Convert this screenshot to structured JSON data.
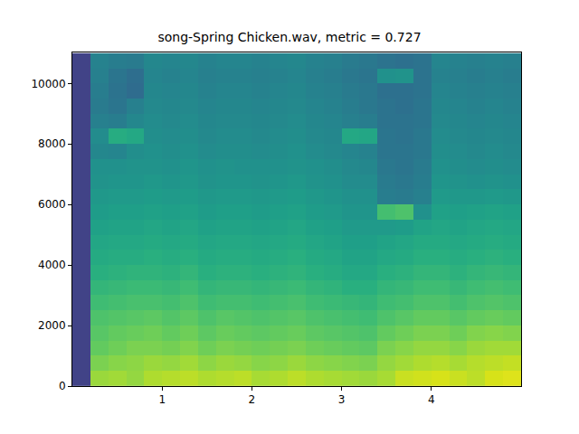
{
  "chart_data": {
    "type": "heatmap",
    "title": "song-Spring Chicken.wav, metric = 0.727",
    "x": [
      0.1,
      0.3,
      0.5,
      0.7,
      0.9,
      1.1,
      1.3,
      1.5,
      1.7,
      1.9,
      2.1,
      2.3,
      2.5,
      2.7,
      2.9,
      3.1,
      3.3,
      3.5,
      3.7,
      3.9,
      4.1,
      4.3,
      4.5,
      4.7,
      4.9
    ],
    "y": [
      250,
      750,
      1250,
      1750,
      2250,
      2750,
      3250,
      3750,
      4250,
      4750,
      5250,
      5750,
      6250,
      6750,
      7250,
      7750,
      8250,
      8750,
      9250,
      9750,
      10250,
      10750
    ],
    "z": [
      [
        2,
        8.5,
        8.6,
        8.4,
        8.8,
        8.9,
        9,
        8.8,
        8.9,
        9,
        8.7,
        8.8,
        9,
        8.8,
        8.7,
        8.6,
        8.5,
        8.7,
        9.2,
        9.3,
        9.4,
        9.2,
        9,
        9.4,
        9.5
      ],
      [
        2,
        8,
        8.2,
        8.3,
        8.5,
        8.4,
        8.6,
        8.3,
        8.5,
        8.4,
        8.2,
        8.3,
        8.5,
        8.3,
        8.2,
        8.1,
        8,
        8.4,
        8.6,
        8.8,
        8.9,
        8.7,
        8.9,
        9,
        9.1
      ],
      [
        2,
        7.6,
        7.8,
        8,
        8,
        7.9,
        8.1,
        7.8,
        8,
        7.9,
        7.8,
        7.9,
        8,
        7.8,
        7.7,
        7.6,
        7.5,
        8,
        8.2,
        8.4,
        8.4,
        8.2,
        8.5,
        8.6,
        8.6
      ],
      [
        2,
        7.4,
        7.6,
        7.7,
        7.8,
        7.6,
        7.8,
        7.5,
        7.7,
        7.6,
        7.5,
        7.6,
        7.7,
        7.5,
        7.4,
        7.3,
        7.2,
        7.6,
        7.8,
        8,
        8,
        7.8,
        8.1,
        8.2,
        8.1
      ],
      [
        2,
        7.2,
        7.3,
        7.4,
        7.5,
        7.3,
        7.5,
        7.2,
        7.4,
        7.3,
        7.2,
        7.3,
        7.4,
        7.2,
        7.1,
        7,
        6.9,
        7.2,
        7.4,
        7.6,
        7.6,
        7.4,
        7.6,
        7.7,
        7.6
      ],
      [
        2,
        6.9,
        7,
        7.1,
        7.1,
        7,
        7.2,
        6.9,
        7,
        7,
        6.9,
        7,
        7.1,
        6.9,
        6.8,
        6.7,
        6.6,
        6.9,
        7,
        7.2,
        7.2,
        7,
        7.2,
        7.3,
        7.2
      ],
      [
        2,
        6.6,
        6.7,
        6.8,
        6.8,
        6.7,
        6.9,
        6.6,
        6.7,
        6.7,
        6.6,
        6.7,
        6.8,
        6.6,
        6.5,
        6.3,
        6.3,
        6.6,
        6.7,
        6.9,
        6.9,
        6.7,
        6.9,
        7,
        6.9
      ],
      [
        2,
        6.3,
        6.4,
        6.5,
        6.5,
        6.4,
        6.6,
        6.3,
        6.4,
        6.4,
        6.3,
        6.4,
        6.5,
        6.3,
        6.2,
        6,
        6,
        6.3,
        6.4,
        6.6,
        6.6,
        6.4,
        6.6,
        6.7,
        6.6
      ],
      [
        2,
        6.1,
        6.2,
        6.2,
        6.3,
        6.2,
        6.3,
        6.1,
        6.2,
        6.2,
        6.1,
        6.2,
        6.3,
        6.1,
        6,
        5.8,
        5.8,
        6,
        6.1,
        6.3,
        6.3,
        6.2,
        6.3,
        6.4,
        6.3
      ],
      [
        2,
        5.9,
        6,
        6,
        6.1,
        6,
        6.1,
        5.9,
        6,
        6,
        5.9,
        6,
        6.1,
        5.9,
        5.8,
        5.6,
        5.6,
        5.8,
        5.9,
        6.1,
        6.1,
        6,
        6.1,
        6.2,
        6.1
      ],
      [
        2,
        5.7,
        5.8,
        5.8,
        5.9,
        5.8,
        5.9,
        5.7,
        5.8,
        5.8,
        5.7,
        5.8,
        5.9,
        5.7,
        5.6,
        5.4,
        5.4,
        5.4,
        5.5,
        5.8,
        5.9,
        5.8,
        5.9,
        6,
        5.9
      ],
      [
        2,
        5.5,
        5.6,
        5.6,
        5.7,
        5.6,
        5.7,
        5.5,
        5.6,
        5.6,
        5.5,
        5.6,
        5.7,
        5.5,
        5.4,
        5.2,
        5.2,
        7,
        7.2,
        5,
        5.7,
        5.6,
        5.7,
        5.8,
        5.7
      ],
      [
        2,
        5.3,
        5.4,
        5.4,
        5.5,
        5.4,
        5.5,
        5.3,
        5.4,
        5.4,
        5.3,
        5.4,
        5.5,
        5.3,
        5.2,
        5,
        5,
        4.2,
        4.1,
        4.3,
        5.4,
        5.3,
        5.3,
        5.4,
        5.3
      ],
      [
        2,
        5.1,
        5.2,
        5.2,
        5.3,
        5.2,
        5.3,
        5.1,
        5.2,
        5.2,
        5.1,
        5.2,
        5.3,
        5.1,
        5,
        4.8,
        4.8,
        4.1,
        4,
        4.2,
        5.2,
        5.1,
        5,
        5.1,
        5
      ],
      [
        2,
        5,
        5,
        5.1,
        5.1,
        5,
        5.2,
        5,
        5.1,
        5,
        5,
        5,
        5.1,
        5,
        4.9,
        4.7,
        4.6,
        4,
        3.9,
        4.1,
        5,
        4.9,
        4.8,
        4.9,
        4.8
      ],
      [
        2,
        4.6,
        4.5,
        4.9,
        5,
        4.9,
        5,
        4.8,
        4.9,
        4.9,
        4.8,
        4.9,
        5,
        4.8,
        4.7,
        4.5,
        4.4,
        3.9,
        3.9,
        4,
        4.9,
        4.8,
        4.7,
        4.8,
        4.7
      ],
      [
        2,
        4.8,
        6.2,
        6,
        4.9,
        4.8,
        4.9,
        4.7,
        4.8,
        4.8,
        4.7,
        4.8,
        4.9,
        4.7,
        4.6,
        6,
        5.9,
        3.9,
        3.8,
        4,
        4.8,
        4.7,
        4.6,
        4.7,
        4.6
      ],
      [
        2,
        4.3,
        4.2,
        4.6,
        4.8,
        4.7,
        4.8,
        4.6,
        4.7,
        4.7,
        4.6,
        4.7,
        4.8,
        4.6,
        4.5,
        4.3,
        4.2,
        3.8,
        3.8,
        3.9,
        4.7,
        4.6,
        4.5,
        4.6,
        4.5
      ],
      [
        2,
        4.1,
        3.9,
        4.3,
        4.7,
        4.6,
        4.7,
        4.5,
        4.6,
        4.6,
        4.5,
        4.6,
        4.7,
        4.5,
        4.4,
        4.2,
        4,
        3.8,
        3.7,
        3.9,
        4.6,
        4.5,
        4.4,
        4.5,
        4.4
      ],
      [
        2,
        4.2,
        3.8,
        3.5,
        4.6,
        4.5,
        4.6,
        4.4,
        4.5,
        4.5,
        4.4,
        4.5,
        4.6,
        4.4,
        4.3,
        4.1,
        4,
        3.7,
        3.7,
        3.8,
        4.5,
        4.4,
        4.3,
        4.4,
        4.3
      ],
      [
        2,
        4.3,
        3.9,
        3.6,
        4.5,
        4.4,
        4.5,
        4.3,
        4.4,
        4.4,
        4.3,
        4.4,
        4.5,
        4.3,
        4.2,
        4,
        3.9,
        5,
        5.1,
        3.8,
        4.4,
        4.3,
        4.2,
        4.3,
        4.2
      ],
      [
        2,
        4.4,
        4.2,
        4.1,
        4.6,
        4.5,
        4.6,
        4.4,
        4.5,
        4.5,
        4.4,
        4.5,
        4.6,
        4.4,
        4.3,
        4.1,
        4,
        3.8,
        3.7,
        3.8,
        4.5,
        4.4,
        4.3,
        4.4,
        4.3
      ]
    ],
    "zlim": [
      0,
      10
    ],
    "xlim": [
      0,
      5
    ],
    "ylim": [
      0,
      11025
    ],
    "xticks": [
      1,
      2,
      3,
      4
    ],
    "yticks": [
      0,
      2000,
      4000,
      6000,
      8000,
      10000
    ],
    "grid": false
  }
}
